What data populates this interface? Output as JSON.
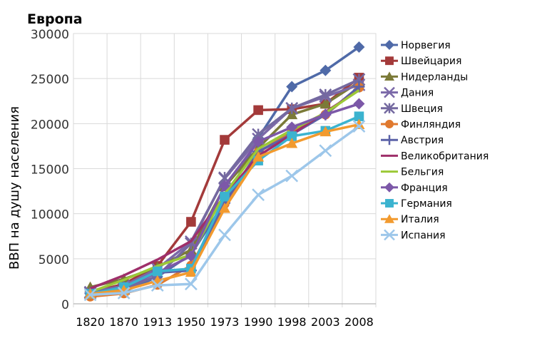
{
  "chart_data": {
    "type": "line",
    "title": "Европа",
    "ylabel": "ВВП на душу населения",
    "xlabel": "",
    "categories": [
      "1820",
      "1870",
      "1913",
      "1950",
      "1973",
      "1990",
      "1998",
      "2003",
      "2008"
    ],
    "ylim": [
      0,
      30000
    ],
    "yticks": [
      0,
      5000,
      10000,
      15000,
      20000,
      25000,
      30000
    ],
    "grid": true,
    "legend_position": "right",
    "series": [
      {
        "name": "Норвегия",
        "color": "#4f6aa8",
        "marker": "diamond",
        "values": [
          1100,
          1350,
          3000,
          5500,
          11300,
          18400,
          24100,
          25900,
          28500
        ]
      },
      {
        "name": "Швейцария",
        "color": "#a33a3a",
        "marker": "square",
        "values": [
          1250,
          2200,
          4200,
          9100,
          18200,
          21500,
          21600,
          22200,
          25100
        ]
      },
      {
        "name": "Нидерланды",
        "color": "#7b7a38",
        "marker": "triangle",
        "values": [
          1850,
          2750,
          4050,
          6000,
          13000,
          17300,
          21000,
          22200,
          24600
        ]
      },
      {
        "name": "Дания",
        "color": "#7b69a8",
        "marker": "x",
        "values": [
          1300,
          2000,
          3900,
          6900,
          13900,
          18300,
          21700,
          23000,
          24300
        ]
      },
      {
        "name": "Швеция",
        "color": "#7469a0",
        "marker": "star",
        "values": [
          1200,
          1650,
          3100,
          6700,
          14000,
          18800,
          21700,
          23200,
          24900
        ]
      },
      {
        "name": "Финляндия",
        "color": "#e0792e",
        "marker": "circle",
        "values": [
          800,
          1150,
          2100,
          4250,
          11100,
          16800,
          19100,
          21000,
          24000
        ]
      },
      {
        "name": "Австрия",
        "color": "#5b62a8",
        "marker": "plus",
        "values": [
          1200,
          1850,
          3450,
          3700,
          11200,
          16900,
          18800,
          21000,
          24100
        ]
      },
      {
        "name": "Великобритания",
        "color": "#9e2f6a",
        "marker": "none",
        "values": [
          1700,
          3150,
          4900,
          6950,
          12000,
          16400,
          18800,
          21300,
          23700
        ]
      },
      {
        "name": "Бельгия",
        "color": "#9cc937",
        "marker": "none",
        "values": [
          1300,
          2650,
          4200,
          5450,
          12200,
          17200,
          19300,
          21200,
          23700
        ]
      },
      {
        "name": "Франция",
        "color": "#7c58a8",
        "marker": "diamond",
        "values": [
          1150,
          1850,
          3450,
          5300,
          13100,
          18000,
          19600,
          21000,
          22200
        ]
      },
      {
        "name": "Германия",
        "color": "#3bb3cf",
        "marker": "square",
        "values": [
          1100,
          1850,
          3600,
          3900,
          11900,
          15900,
          18600,
          19200,
          20800
        ]
      },
      {
        "name": "Италия",
        "color": "#f29a2e",
        "marker": "triangle",
        "values": [
          1100,
          1500,
          2550,
          3500,
          10600,
          16300,
          17800,
          19100,
          19900
        ]
      },
      {
        "name": "Испания",
        "color": "#9dc7ea",
        "marker": "x",
        "values": [
          1000,
          1200,
          2050,
          2200,
          7650,
          12100,
          14200,
          17000,
          19700
        ]
      }
    ]
  }
}
